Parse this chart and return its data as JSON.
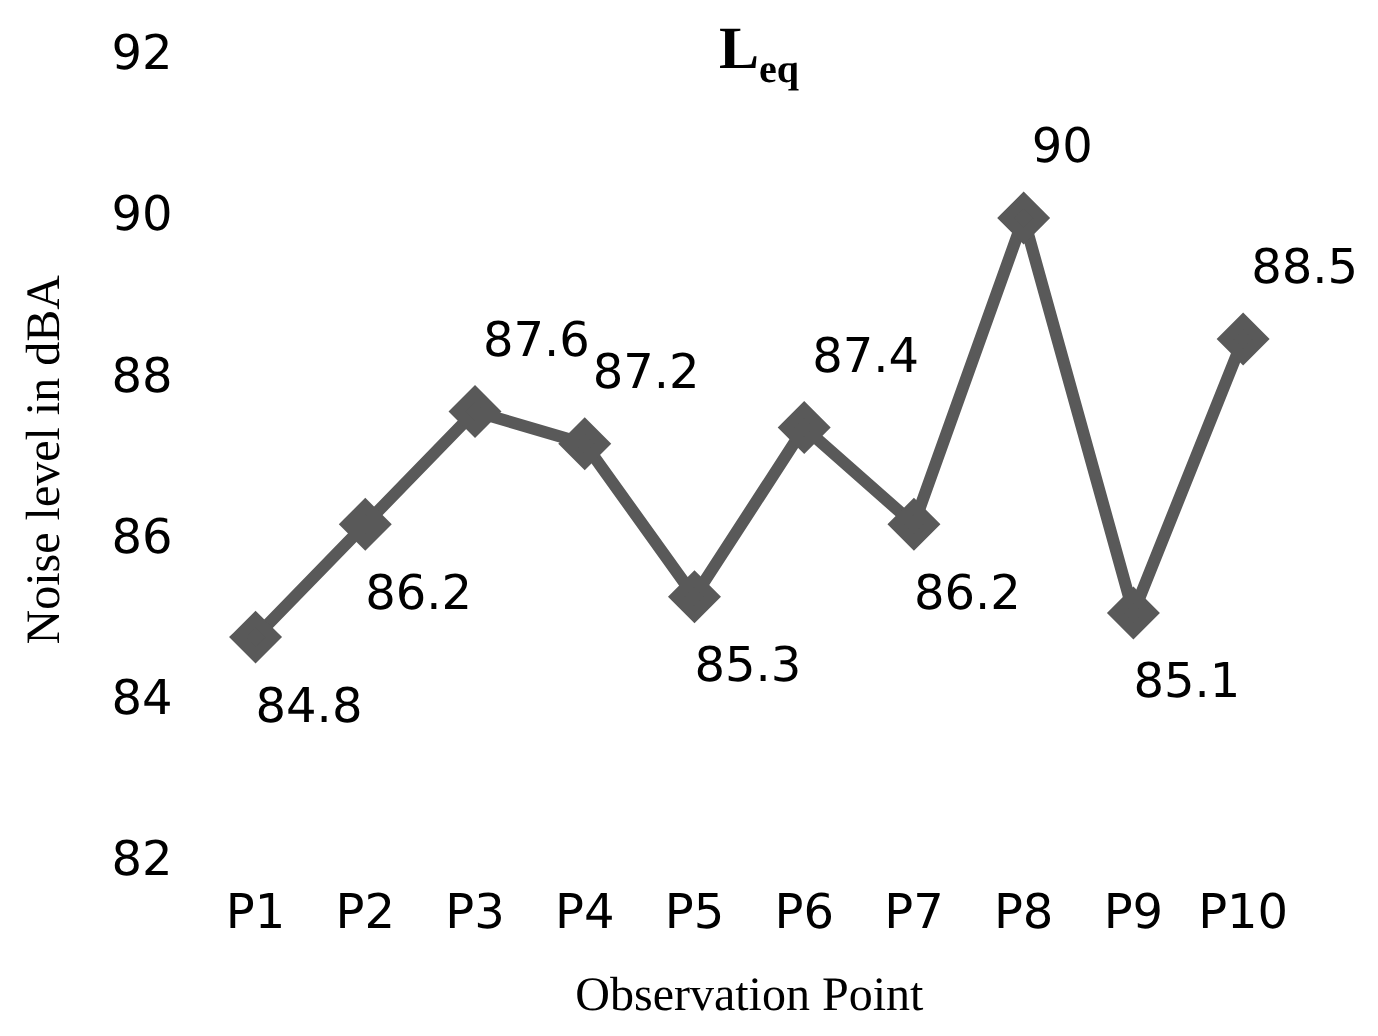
{
  "chart_data": {
    "type": "line",
    "title": "L$_{eq}$",
    "xlabel": "Observation Point",
    "ylabel": "Noise level in dBA",
    "categories": [
      "P1",
      "P2",
      "P3",
      "P4",
      "P5",
      "P6",
      "P7",
      "P8",
      "P9",
      "P10"
    ],
    "series": [
      {
        "color": "#595959",
        "values": [
          84.8,
          86.2,
          87.6,
          87.2,
          85.3,
          87.4,
          86.2,
          90,
          85.1,
          88.5
        ]
      }
    ],
    "ylim": [
      82,
      92
    ],
    "yticks": [
      82,
      84,
      86,
      88,
      90,
      92
    ],
    "grid": false,
    "legend": false,
    "marker": "diamond",
    "line_style": "solid",
    "data_labels": true
  }
}
